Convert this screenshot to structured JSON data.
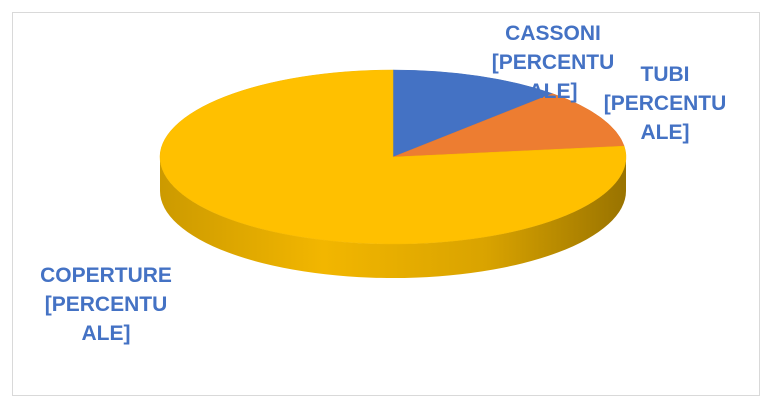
{
  "chart_data": {
    "type": "pie",
    "style": "3d",
    "title": "",
    "series": [
      {
        "name": "",
        "categories": [
          "CASSONI",
          "TUBI",
          "COPERTURE"
        ],
        "values": [
          12,
          11,
          77
        ],
        "colors": [
          "#4472c4",
          "#ed7d31",
          "#ffc000"
        ],
        "labels": [
          [
            "CASSONI",
            "[PERCENTU",
            "ALE]"
          ],
          [
            "TUBI",
            "[PERCENTU",
            "ALE]"
          ],
          [
            "COPERTURE",
            "[PERCENTU",
            "ALE]"
          ]
        ]
      }
    ],
    "label_color": "#4472c4",
    "legend": "none"
  }
}
